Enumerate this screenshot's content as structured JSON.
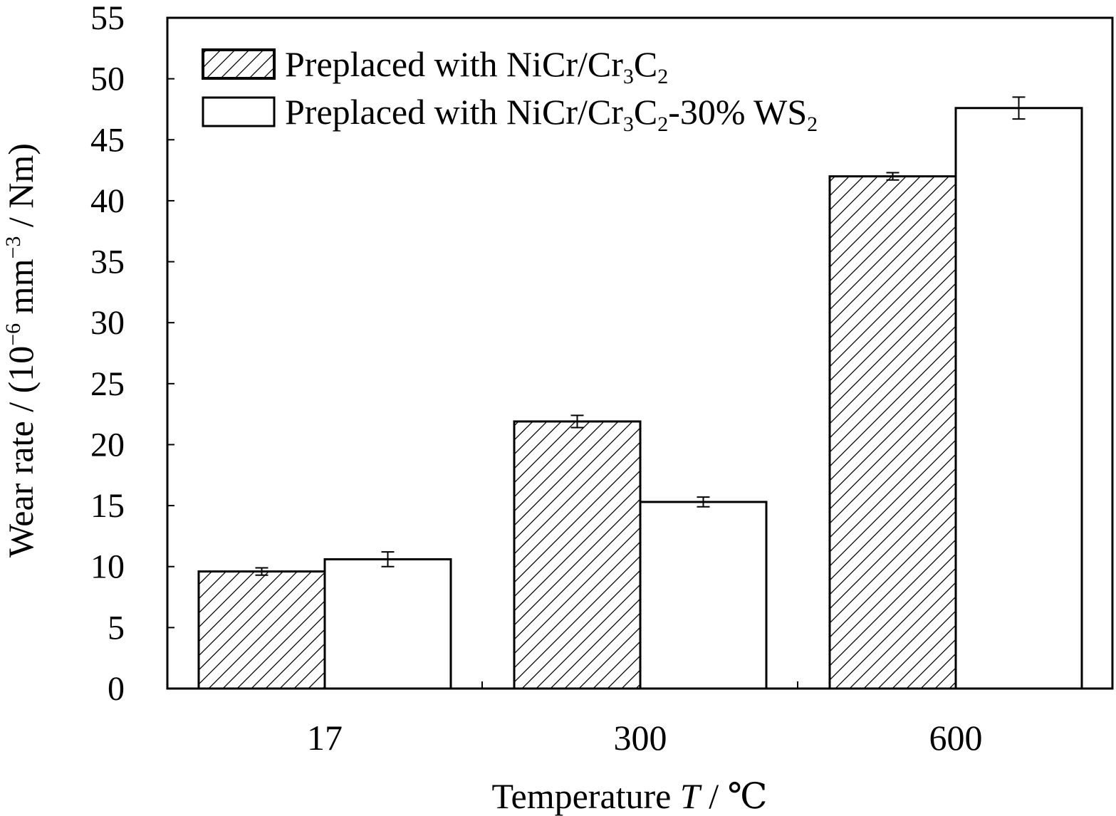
{
  "chart_data": {
    "type": "bar",
    "categories": [
      "17",
      "300",
      "600"
    ],
    "series": [
      {
        "name": "Preplaced with NiCr/Cr3C2",
        "label_parts": [
          [
            "Preplaced with NiCr/Cr",
            "n"
          ],
          [
            "3",
            "sub"
          ],
          [
            "C",
            "n"
          ],
          [
            "2",
            "sub"
          ]
        ],
        "pattern": "hatched",
        "values": [
          9.6,
          21.9,
          42.0
        ],
        "errors": [
          0.3,
          0.5,
          0.3
        ]
      },
      {
        "name": "Preplaced with NiCr/Cr3C2-30% WS2",
        "label_parts": [
          [
            "Preplaced with NiCr/Cr",
            "n"
          ],
          [
            "3",
            "sub"
          ],
          [
            "C",
            "n"
          ],
          [
            "2",
            "sub"
          ],
          [
            "-30% WS",
            "n"
          ],
          [
            "2",
            "sub"
          ]
        ],
        "pattern": "plain",
        "values": [
          10.6,
          15.3,
          47.6
        ],
        "errors": [
          0.6,
          0.4,
          0.9
        ]
      }
    ],
    "ylim": [
      0,
      55
    ],
    "yticks": [
      "0",
      "5",
      "10",
      "15",
      "20",
      "25",
      "30",
      "35",
      "40",
      "45",
      "50",
      "55"
    ],
    "xlabel_parts": [
      [
        "Temperature ",
        "n"
      ],
      [
        "T",
        "i"
      ],
      [
        " / ℃",
        "n"
      ]
    ],
    "ylabel_parts": [
      [
        "Wear rate / (10",
        "n"
      ],
      [
        "−6",
        "sup"
      ],
      [
        " mm",
        "n"
      ],
      [
        "−3",
        "sup"
      ],
      [
        " / Nm)",
        "n"
      ]
    ],
    "legend_position": "top-left",
    "colors": {
      "line": "#000000",
      "plain_fill": "#ffffff",
      "hatch": "#000000"
    }
  }
}
